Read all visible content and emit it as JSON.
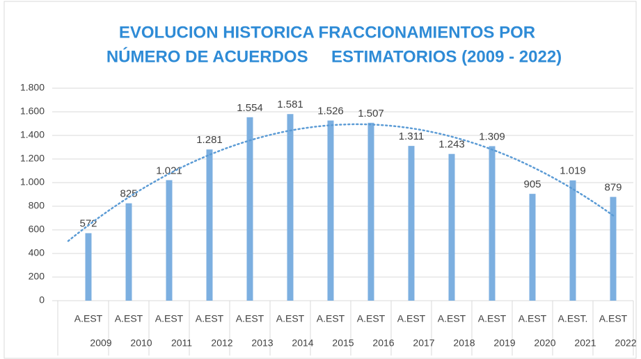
{
  "chart_data": {
    "type": "bar",
    "title": [
      "EVOLUCION HISTORICA FRACCIONAMIENTOS POR",
      "NÚMERO DE ACUERDOS     ESTIMATORIOS (2009 - 2022)"
    ],
    "categories": [
      "A.EST",
      "A.EST",
      "A.EST",
      "A.EST",
      "A.EST",
      "A.EST",
      "A.EST",
      "A.EST",
      "A.EST",
      "A.EST",
      "A.EST",
      "A.EST",
      "A.EST.",
      "A.EST"
    ],
    "groups": [
      "2009",
      "2010",
      "2011",
      "2012",
      "2013",
      "2014",
      "2015",
      "2016",
      "2017",
      "2018",
      "2019",
      "2020",
      "2021",
      "2022"
    ],
    "values": [
      572,
      825,
      1021,
      1281,
      1554,
      1581,
      1526,
      1507,
      1311,
      1243,
      1309,
      905,
      1019,
      879
    ],
    "value_labels": [
      "572",
      "825",
      "1.021",
      "1.281",
      "1.554",
      "1.581",
      "1.526",
      "1.507",
      "1.311",
      "1.243",
      "1.309",
      "905",
      "1.019",
      "879"
    ],
    "color": "#7cafe0",
    "trendline": {
      "type": "polynomial",
      "order": 2,
      "color": "#5b9bd5"
    },
    "ylim": [
      0,
      1800
    ],
    "yticks": [
      0,
      200,
      400,
      600,
      800,
      {
        "value": 1000,
        "label": "1.000"
      },
      {
        "value": 1200,
        "label": "1.200"
      },
      {
        "value": 1400,
        "label": "1.400"
      },
      {
        "value": 1600,
        "label": "1.600"
      },
      {
        "value": 1800,
        "label": "1.800"
      }
    ],
    "grid": true
  }
}
